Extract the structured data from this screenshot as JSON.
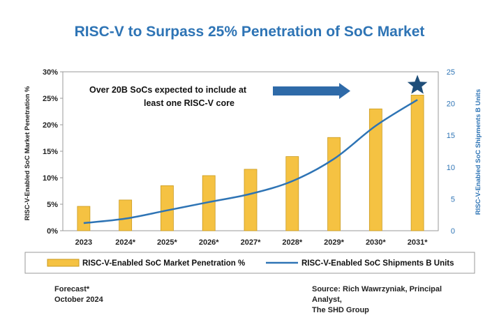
{
  "title": "RISC-V to Surpass 25% Penetration of SoC Market",
  "annotation": [
    "Over 20B SoCs expected to include at",
    "least one RISC-V core"
  ],
  "footnote": [
    "Forecast*",
    "October 2024"
  ],
  "source": [
    "Source: Rich Wawrzyniak, Principal Analyst,",
    "The SHD Group"
  ],
  "colors": {
    "bar": "#f5c242",
    "bar_edge": "#c99a1e",
    "line": "#2e74b5",
    "title": "#2e74b5",
    "arrow": "#2e6aa8",
    "star": "#1f4e79"
  },
  "chart_data": {
    "type": "bar",
    "categories": [
      "2023",
      "2024*",
      "2025*",
      "2026*",
      "2027*",
      "2028*",
      "2029*",
      "2030*",
      "2031*"
    ],
    "series": [
      {
        "name": "RISC-V-Enabled SoC Market Penetration %",
        "type": "bar",
        "axis": "left",
        "values": [
          4.6,
          5.8,
          8.5,
          10.4,
          11.6,
          14.0,
          17.6,
          23.0,
          25.6
        ]
      },
      {
        "name": "RISC-V-Enabled SoC Shipments B Units",
        "type": "line",
        "axis": "right",
        "values": [
          1.2,
          1.9,
          3.2,
          4.5,
          5.8,
          7.8,
          11.3,
          16.5,
          20.6
        ]
      }
    ],
    "ylabel": "RISC-V-Enabled SoC Market Penetration %",
    "y2label": "RISC-V-Enabled SoC Shipments B Units",
    "ylim": [
      0,
      30
    ],
    "y_ticks": [
      "0%",
      "5%",
      "10%",
      "15%",
      "20%",
      "25%",
      "30%"
    ],
    "y2lim": [
      0,
      25
    ],
    "y2_ticks": [
      "0",
      "5",
      "10",
      "15",
      "20",
      "25"
    ],
    "legend_position": "bottom",
    "grid": false
  }
}
